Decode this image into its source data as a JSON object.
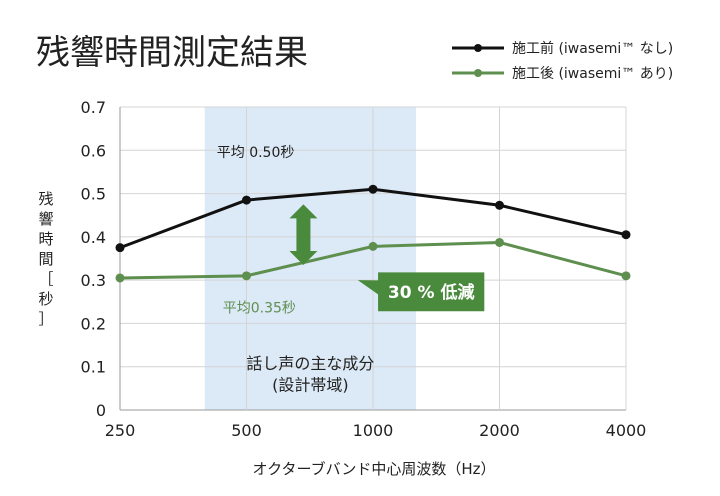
{
  "chart_data": {
    "type": "line",
    "title": "残響時間測定結果",
    "xlabel": "オクターブバンド中心周波数（Hz）",
    "ylabel_chars": [
      "残",
      "響",
      "時",
      "間",
      "［",
      "秒",
      "］"
    ],
    "categories": [
      "250",
      "500",
      "1000",
      "2000",
      "4000"
    ],
    "ylim": [
      0,
      0.7
    ],
    "yticks": [
      "0",
      "0.1",
      "0.2",
      "0.3",
      "0.4",
      "0.5",
      "0.6",
      "0.7"
    ],
    "grid": true,
    "legend_position": "top-right",
    "series": [
      {
        "name": "施工前 (iwasemi™ なし)",
        "color": "#111111",
        "values": [
          0.375,
          0.485,
          0.51,
          0.473,
          0.405
        ]
      },
      {
        "name": "施工後 (iwasemi™ あり)",
        "color": "#5e8f4e",
        "values": [
          0.305,
          0.31,
          0.378,
          0.387,
          0.31
        ]
      }
    ],
    "band": {
      "from_category": "250",
      "to_category": "1000",
      "color": "#dce9f7",
      "label_line1": "話し声の主な成分",
      "label_line2": "(設計帯域)"
    },
    "annotations": {
      "before_avg": "平均 0.50秒",
      "after_avg": "平均0.35秒",
      "reduction": "30 % 低減",
      "arrow_color": "#4a8a3c",
      "badge_color": "#4a8a3c"
    }
  }
}
